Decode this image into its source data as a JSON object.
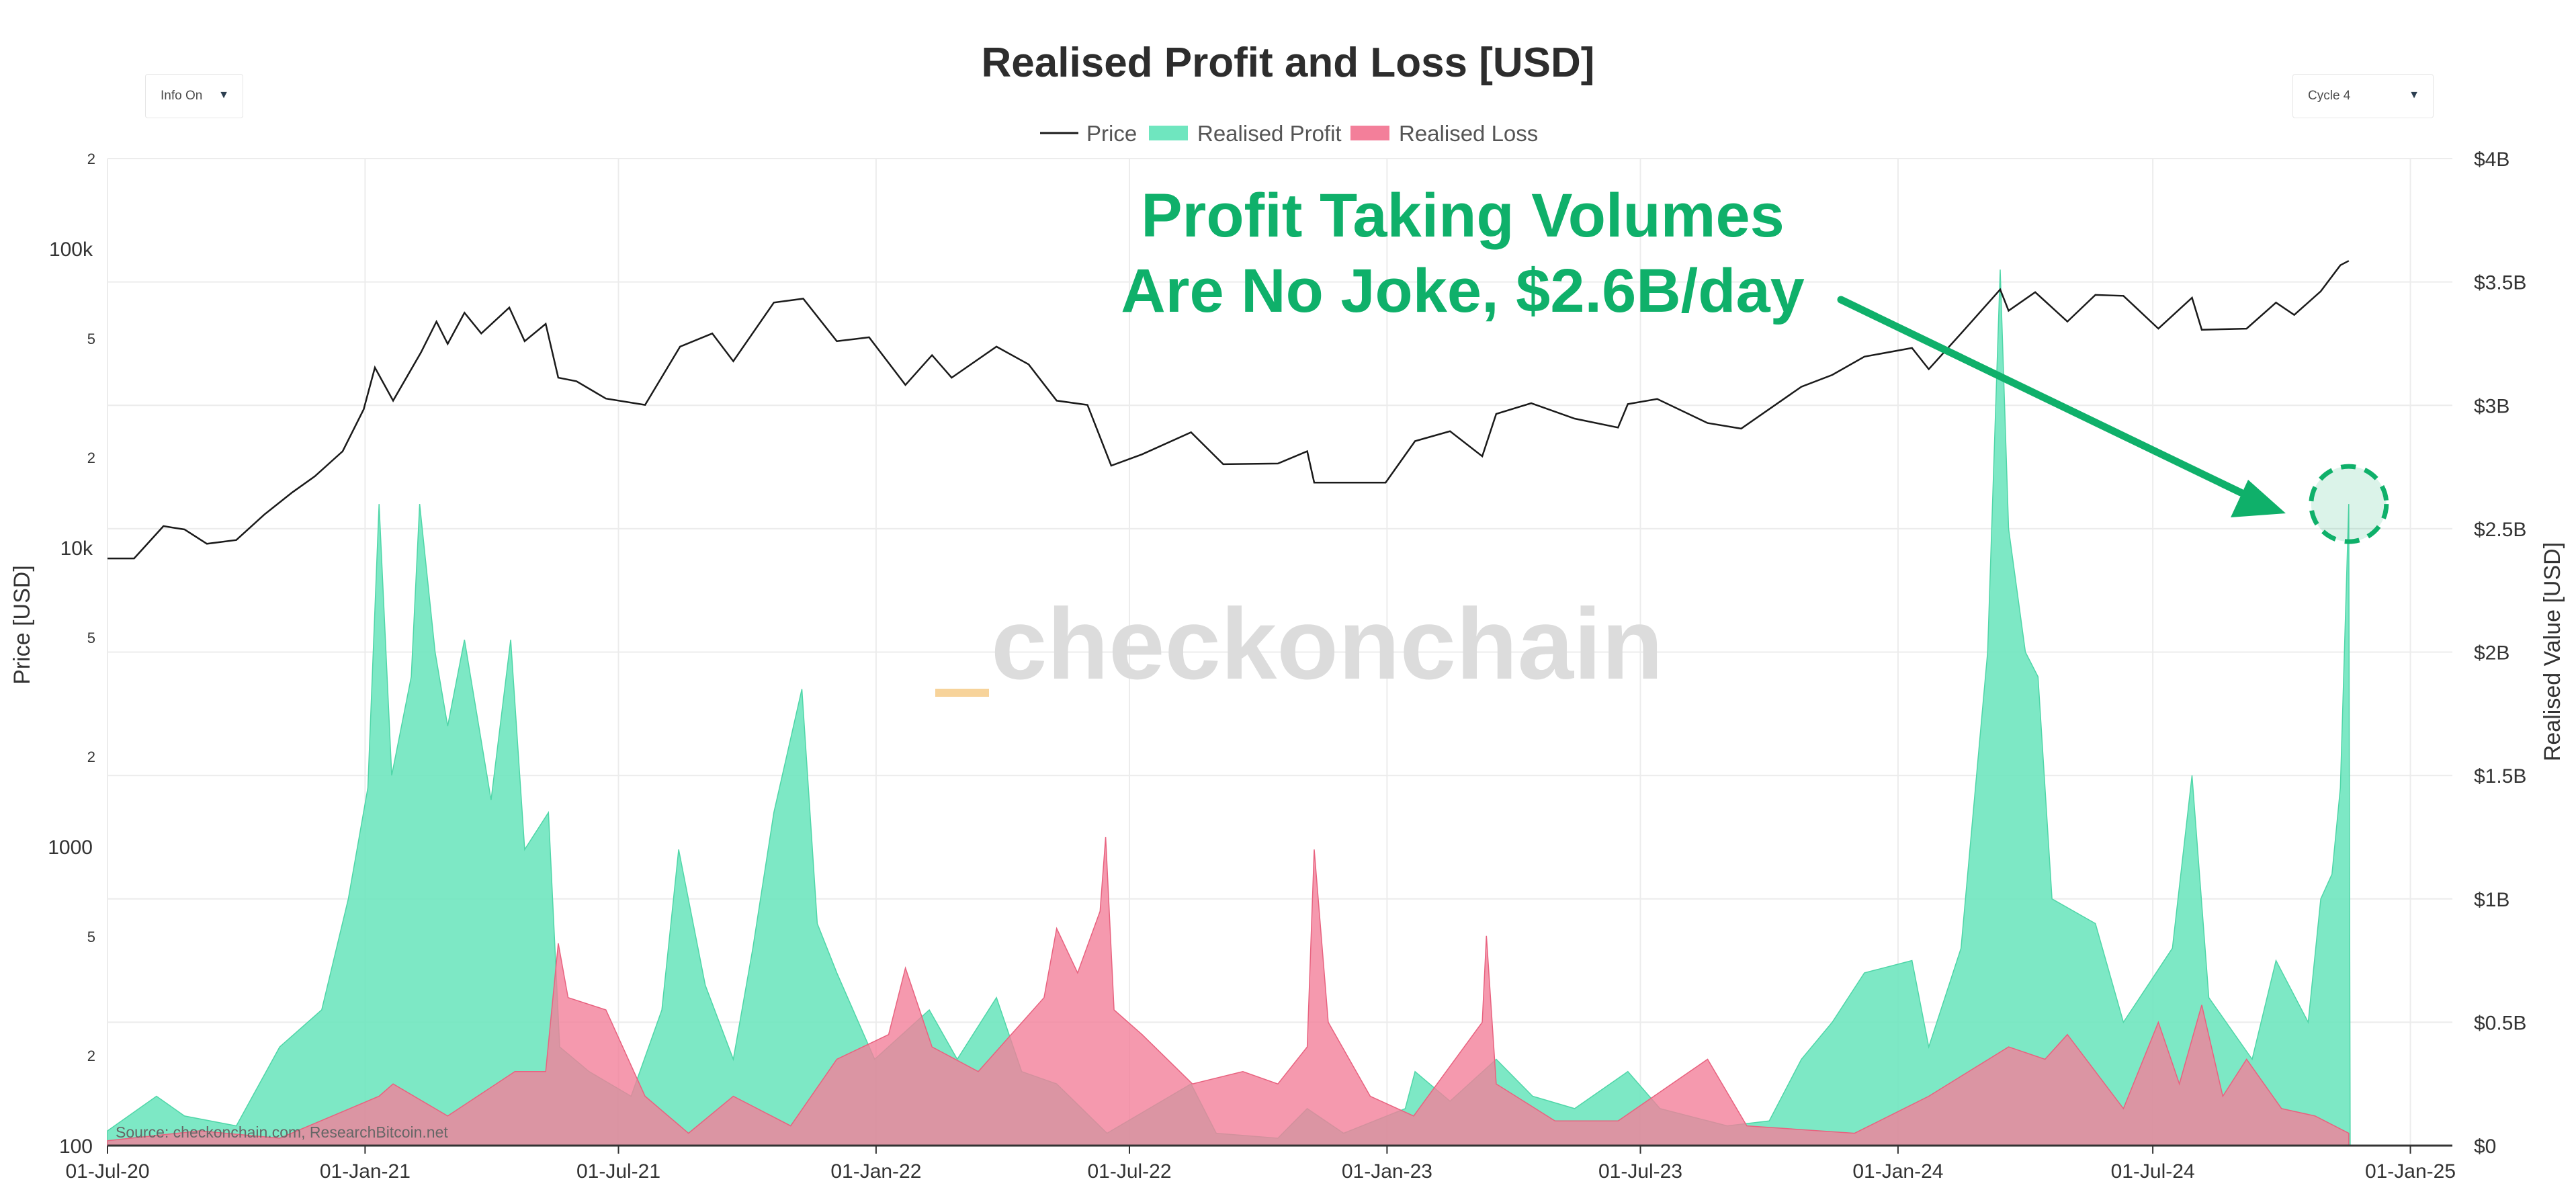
{
  "controls": {
    "info_select": "Info On",
    "cycle_select": "Cycle 4",
    "dropdown_icon": "chevron-down-icon"
  },
  "colors": {
    "price": "#1a1a1a",
    "profit": "#6fe6bf",
    "loss": "#f37f9a",
    "annotation": "#0fb06a",
    "watermark": "#dcdcdc",
    "watermark_accent": "#f7d39a"
  },
  "watermark": "checkonchain",
  "source": "Source: checkonchain.com, ResearchBitcoin.net",
  "annotation": {
    "line1": "Profit Taking Volumes",
    "line2": "Are No Joke, $2.6B/day"
  },
  "chart_data": {
    "type": "line",
    "title": "Realised Profit and Loss [USD]",
    "legend": [
      "Price",
      "Realised Profit",
      "Realised Loss"
    ],
    "legend_position": "top-center",
    "x_ticks": [
      "01-Jul-20",
      "01-Jan-21",
      "01-Jul-21",
      "01-Jan-22",
      "01-Jul-22",
      "01-Jan-23",
      "01-Jul-23",
      "01-Jan-24",
      "01-Jul-24",
      "01-Jan-25"
    ],
    "xlim": [
      "2020-07-01",
      "2025-01-31"
    ],
    "y_left": {
      "label": "Price [USD]",
      "scale": "log",
      "range": [
        100,
        200000
      ],
      "major_ticks": [
        {
          "v": 100,
          "t": "100"
        },
        {
          "v": 1000,
          "t": "1000"
        },
        {
          "v": 10000,
          "t": "10k"
        },
        {
          "v": 100000,
          "t": "100k"
        }
      ],
      "minor_ticks": [
        {
          "v": 200,
          "t": "2"
        },
        {
          "v": 500,
          "t": "5"
        },
        {
          "v": 2000,
          "t": "2"
        },
        {
          "v": 5000,
          "t": "5"
        },
        {
          "v": 20000,
          "t": "2"
        },
        {
          "v": 50000,
          "t": "5"
        },
        {
          "v": 200000,
          "t": "2"
        }
      ]
    },
    "y_right": {
      "label": "Realised Value [USD]",
      "range": [
        0,
        4
      ],
      "unit": "B",
      "ticks": [
        {
          "v": 0,
          "t": "$0"
        },
        {
          "v": 0.5,
          "t": "$0.5B"
        },
        {
          "v": 1,
          "t": "$1B"
        },
        {
          "v": 1.5,
          "t": "$1.5B"
        },
        {
          "v": 2,
          "t": "$2B"
        },
        {
          "v": 2.5,
          "t": "$2.5B"
        },
        {
          "v": 3,
          "t": "$3B"
        },
        {
          "v": 3.5,
          "t": "$3.5B"
        },
        {
          "v": 4,
          "t": "$4B"
        }
      ]
    },
    "series": [
      {
        "name": "Price",
        "type": "line",
        "axis": "left",
        "points": [
          [
            "2020-07-01",
            9200
          ],
          [
            "2020-07-20",
            9200
          ],
          [
            "2020-08-10",
            11800
          ],
          [
            "2020-08-25",
            11500
          ],
          [
            "2020-09-10",
            10300
          ],
          [
            "2020-10-01",
            10600
          ],
          [
            "2020-10-21",
            12900
          ],
          [
            "2020-11-10",
            15300
          ],
          [
            "2020-11-26",
            17300
          ],
          [
            "2020-12-16",
            21000
          ],
          [
            "2020-12-31",
            29000
          ],
          [
            "2021-01-08",
            40000
          ],
          [
            "2021-01-21",
            31000
          ],
          [
            "2021-02-10",
            45000
          ],
          [
            "2021-02-21",
            57000
          ],
          [
            "2021-03-01",
            48000
          ],
          [
            "2021-03-13",
            61000
          ],
          [
            "2021-03-25",
            52000
          ],
          [
            "2021-04-14",
            63500
          ],
          [
            "2021-04-25",
            49000
          ],
          [
            "2021-05-10",
            56000
          ],
          [
            "2021-05-19",
            37000
          ],
          [
            "2021-06-01",
            36000
          ],
          [
            "2021-06-22",
            31500
          ],
          [
            "2021-07-20",
            30000
          ],
          [
            "2021-08-14",
            47000
          ],
          [
            "2021-09-06",
            52000
          ],
          [
            "2021-09-21",
            42000
          ],
          [
            "2021-10-20",
            66000
          ],
          [
            "2021-11-10",
            68000
          ],
          [
            "2021-12-04",
            49000
          ],
          [
            "2021-12-27",
            50500
          ],
          [
            "2022-01-22",
            35000
          ],
          [
            "2022-02-10",
            44000
          ],
          [
            "2022-02-24",
            37000
          ],
          [
            "2022-03-28",
            47000
          ],
          [
            "2022-04-20",
            41000
          ],
          [
            "2022-05-10",
            31000
          ],
          [
            "2022-06-01",
            30000
          ],
          [
            "2022-06-18",
            18800
          ],
          [
            "2022-07-10",
            20500
          ],
          [
            "2022-08-14",
            24300
          ],
          [
            "2022-09-06",
            19000
          ],
          [
            "2022-10-15",
            19100
          ],
          [
            "2022-11-05",
            21000
          ],
          [
            "2022-11-10",
            16500
          ],
          [
            "2022-12-31",
            16500
          ],
          [
            "2023-01-21",
            22700
          ],
          [
            "2023-02-15",
            24500
          ],
          [
            "2023-03-10",
            20200
          ],
          [
            "2023-03-20",
            28000
          ],
          [
            "2023-04-14",
            30400
          ],
          [
            "2023-05-15",
            27000
          ],
          [
            "2023-06-15",
            25200
          ],
          [
            "2023-06-22",
            30200
          ],
          [
            "2023-07-13",
            31400
          ],
          [
            "2023-08-18",
            26100
          ],
          [
            "2023-09-11",
            25000
          ],
          [
            "2023-10-24",
            34500
          ],
          [
            "2023-11-15",
            37800
          ],
          [
            "2023-12-08",
            43500
          ],
          [
            "2024-01-11",
            46500
          ],
          [
            "2024-01-23",
            39500
          ],
          [
            "2024-02-15",
            52000
          ],
          [
            "2024-03-14",
            73000
          ],
          [
            "2024-03-20",
            62000
          ],
          [
            "2024-04-08",
            71500
          ],
          [
            "2024-05-01",
            57000
          ],
          [
            "2024-05-21",
            70000
          ],
          [
            "2024-06-10",
            69500
          ],
          [
            "2024-07-05",
            54000
          ],
          [
            "2024-07-29",
            68500
          ],
          [
            "2024-08-05",
            53500
          ],
          [
            "2024-09-06",
            54000
          ],
          [
            "2024-09-27",
            66000
          ],
          [
            "2024-10-10",
            60000
          ],
          [
            "2024-10-29",
            72000
          ],
          [
            "2024-11-12",
            88000
          ],
          [
            "2024-11-18",
            91000
          ]
        ]
      },
      {
        "name": "Realised Profit",
        "type": "area",
        "axis": "right",
        "unit": "USD billions",
        "points": [
          [
            "2020-07-01",
            0.06
          ],
          [
            "2020-08-05",
            0.2
          ],
          [
            "2020-08-25",
            0.12
          ],
          [
            "2020-10-01",
            0.08
          ],
          [
            "2020-11-01",
            0.4
          ],
          [
            "2020-12-01",
            0.55
          ],
          [
            "2020-12-20",
            1.0
          ],
          [
            "2021-01-03",
            1.45
          ],
          [
            "2021-01-11",
            2.6
          ],
          [
            "2021-01-20",
            1.5
          ],
          [
            "2021-02-03",
            1.9
          ],
          [
            "2021-02-09",
            2.6
          ],
          [
            "2021-02-20",
            2.0
          ],
          [
            "2021-03-01",
            1.7
          ],
          [
            "2021-03-13",
            2.05
          ],
          [
            "2021-04-01",
            1.4
          ],
          [
            "2021-04-15",
            2.05
          ],
          [
            "2021-04-25",
            1.2
          ],
          [
            "2021-05-12",
            1.35
          ],
          [
            "2021-05-20",
            0.4
          ],
          [
            "2021-06-10",
            0.3
          ],
          [
            "2021-07-10",
            0.2
          ],
          [
            "2021-08-01",
            0.55
          ],
          [
            "2021-08-13",
            1.2
          ],
          [
            "2021-09-01",
            0.65
          ],
          [
            "2021-09-21",
            0.35
          ],
          [
            "2021-10-05",
            0.8
          ],
          [
            "2021-10-20",
            1.35
          ],
          [
            "2021-11-09",
            1.85
          ],
          [
            "2021-11-20",
            0.9
          ],
          [
            "2021-12-04",
            0.7
          ],
          [
            "2021-12-31",
            0.35
          ],
          [
            "2022-02-08",
            0.55
          ],
          [
            "2022-02-28",
            0.35
          ],
          [
            "2022-03-28",
            0.6
          ],
          [
            "2022-04-15",
            0.3
          ],
          [
            "2022-05-10",
            0.25
          ],
          [
            "2022-06-15",
            0.05
          ],
          [
            "2022-07-15",
            0.15
          ],
          [
            "2022-08-14",
            0.25
          ],
          [
            "2022-09-01",
            0.05
          ],
          [
            "2022-10-15",
            0.03
          ],
          [
            "2022-11-05",
            0.15
          ],
          [
            "2022-12-01",
            0.05
          ],
          [
            "2023-01-14",
            0.15
          ],
          [
            "2023-01-21",
            0.3
          ],
          [
            "2023-02-15",
            0.18
          ],
          [
            "2023-03-20",
            0.35
          ],
          [
            "2023-04-15",
            0.2
          ],
          [
            "2023-05-15",
            0.15
          ],
          [
            "2023-06-22",
            0.3
          ],
          [
            "2023-07-15",
            0.15
          ],
          [
            "2023-09-01",
            0.08
          ],
          [
            "2023-10-01",
            0.1
          ],
          [
            "2023-10-24",
            0.35
          ],
          [
            "2023-11-15",
            0.5
          ],
          [
            "2023-12-08",
            0.7
          ],
          [
            "2024-01-11",
            0.75
          ],
          [
            "2024-01-23",
            0.4
          ],
          [
            "2024-02-15",
            0.8
          ],
          [
            "2024-03-05",
            2.0
          ],
          [
            "2024-03-14",
            3.55
          ],
          [
            "2024-03-20",
            2.5
          ],
          [
            "2024-04-01",
            2.0
          ],
          [
            "2024-04-10",
            1.9
          ],
          [
            "2024-04-20",
            1.0
          ],
          [
            "2024-05-21",
            0.9
          ],
          [
            "2024-06-10",
            0.5
          ],
          [
            "2024-07-15",
            0.8
          ],
          [
            "2024-07-29",
            1.5
          ],
          [
            "2024-08-10",
            0.6
          ],
          [
            "2024-09-10",
            0.35
          ],
          [
            "2024-09-27",
            0.75
          ],
          [
            "2024-10-20",
            0.5
          ],
          [
            "2024-10-29",
            1.0
          ],
          [
            "2024-11-06",
            1.1
          ],
          [
            "2024-11-12",
            1.45
          ],
          [
            "2024-11-18",
            2.6
          ],
          [
            "2024-11-19",
            0.0
          ]
        ]
      },
      {
        "name": "Realised Loss",
        "type": "area",
        "axis": "right",
        "unit": "USD billions",
        "points": [
          [
            "2020-07-01",
            0.02
          ],
          [
            "2020-09-05",
            0.06
          ],
          [
            "2020-11-01",
            0.03
          ],
          [
            "2021-01-11",
            0.2
          ],
          [
            "2021-01-21",
            0.25
          ],
          [
            "2021-03-01",
            0.12
          ],
          [
            "2021-04-18",
            0.3
          ],
          [
            "2021-05-10",
            0.3
          ],
          [
            "2021-05-19",
            0.82
          ],
          [
            "2021-05-26",
            0.6
          ],
          [
            "2021-06-22",
            0.55
          ],
          [
            "2021-07-20",
            0.2
          ],
          [
            "2021-08-20",
            0.05
          ],
          [
            "2021-09-21",
            0.2
          ],
          [
            "2021-11-01",
            0.08
          ],
          [
            "2021-12-04",
            0.35
          ],
          [
            "2022-01-10",
            0.45
          ],
          [
            "2022-01-22",
            0.72
          ],
          [
            "2022-02-10",
            0.4
          ],
          [
            "2022-03-15",
            0.3
          ],
          [
            "2022-05-01",
            0.6
          ],
          [
            "2022-05-10",
            0.88
          ],
          [
            "2022-05-25",
            0.7
          ],
          [
            "2022-06-10",
            0.95
          ],
          [
            "2022-06-14",
            1.25
          ],
          [
            "2022-06-20",
            0.55
          ],
          [
            "2022-07-10",
            0.45
          ],
          [
            "2022-08-15",
            0.25
          ],
          [
            "2022-09-20",
            0.3
          ],
          [
            "2022-10-15",
            0.25
          ],
          [
            "2022-11-05",
            0.4
          ],
          [
            "2022-11-10",
            1.2
          ],
          [
            "2022-11-20",
            0.5
          ],
          [
            "2022-12-20",
            0.2
          ],
          [
            "2023-01-20",
            0.12
          ],
          [
            "2023-03-10",
            0.5
          ],
          [
            "2023-03-13",
            0.85
          ],
          [
            "2023-03-20",
            0.25
          ],
          [
            "2023-05-01",
            0.1
          ],
          [
            "2023-06-15",
            0.1
          ],
          [
            "2023-08-18",
            0.35
          ],
          [
            "2023-09-15",
            0.08
          ],
          [
            "2023-12-01",
            0.05
          ],
          [
            "2024-01-23",
            0.2
          ],
          [
            "2024-03-20",
            0.4
          ],
          [
            "2024-04-15",
            0.35
          ],
          [
            "2024-05-01",
            0.45
          ],
          [
            "2024-06-10",
            0.15
          ],
          [
            "2024-07-05",
            0.5
          ],
          [
            "2024-07-20",
            0.25
          ],
          [
            "2024-08-05",
            0.57
          ],
          [
            "2024-08-20",
            0.2
          ],
          [
            "2024-09-06",
            0.35
          ],
          [
            "2024-10-01",
            0.15
          ],
          [
            "2024-10-25",
            0.12
          ],
          [
            "2024-11-18",
            0.05
          ]
        ]
      }
    ],
    "highlight": {
      "date": "2024-11-18",
      "value": 2.6
    }
  }
}
